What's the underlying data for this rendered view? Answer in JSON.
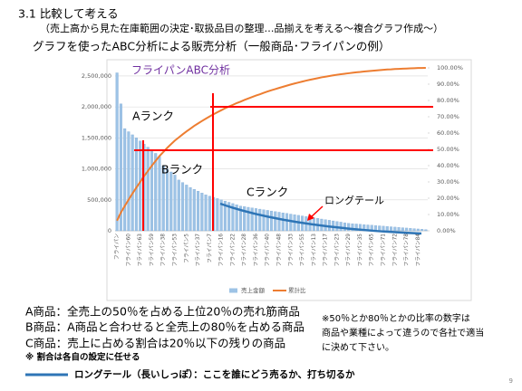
{
  "header": {
    "section": "3.1 比較して考える",
    "subtitle": "（売上高から見た在庫範囲の決定･取扱品目の整理…品揃えを考える～複合グラフ作成～）",
    "heading": "グラフを使ったABC分析による販売分析（一般商品･フライパンの例）"
  },
  "chart_data": {
    "type": "combo",
    "title": "フライパンABC分析",
    "categories": [
      "フライパン",
      null,
      null,
      "フライパン60",
      null,
      null,
      "フライパン63",
      null,
      null,
      "フライパン59",
      null,
      null,
      "フライパン38",
      null,
      null,
      "フライパン53",
      null,
      null,
      "フライパン5",
      null,
      null,
      "フライパン37",
      null,
      null,
      "フライパン7",
      null,
      null,
      "フライパン16",
      null,
      null,
      "フライパン22",
      null,
      null,
      "フライパン28",
      null,
      null,
      "フライパン36",
      null,
      null,
      "フライパン40",
      null,
      null,
      "フライパン48",
      null,
      null,
      "フライパン33",
      null,
      null,
      "フライパン55",
      null,
      null,
      "フライパン13",
      null,
      null,
      "フライパン17",
      null,
      null,
      "フライパン23",
      null,
      null,
      "フライパン29",
      null,
      null,
      "フライパン35",
      null,
      null,
      "フライパン65",
      null,
      null,
      "フライパン71",
      null,
      null,
      "フライパン72",
      null,
      null,
      "フライパン78",
      null,
      null,
      "フライパン84",
      null,
      null
    ],
    "series": [
      {
        "name": "売上金額",
        "type": "bar",
        "color": "#9dc3e6",
        "values": [
          2550000,
          2050000,
          1650000,
          1600000,
          1550000,
          1500000,
          1450000,
          1400000,
          1350000,
          1300000,
          1250000,
          1200000,
          1050000,
          1000000,
          950000,
          900000,
          820000,
          780000,
          740000,
          700000,
          670000,
          640000,
          610000,
          580000,
          560000,
          540000,
          520000,
          500000,
          480000,
          460000,
          440000,
          420000,
          400000,
          390000,
          380000,
          370000,
          360000,
          350000,
          340000,
          330000,
          320000,
          310000,
          300000,
          290000,
          280000,
          270000,
          260000,
          250000,
          240000,
          230000,
          220000,
          210000,
          200000,
          190000,
          180000,
          170000,
          160000,
          150000,
          140000,
          130000,
          120000,
          115000,
          110000,
          105000,
          100000,
          95000,
          90000,
          85000,
          80000,
          75000,
          70000,
          65000,
          60000,
          55000,
          50000,
          45000,
          40000,
          35000,
          30000,
          25000,
          20000
        ]
      },
      {
        "name": "累計比",
        "type": "line",
        "axis": "y2",
        "color": "#ed7d31",
        "values": [
          6.2,
          11.2,
          15.2,
          19.1,
          22.9,
          26.5,
          30.0,
          33.5,
          36.7,
          39.9,
          42.9,
          45.9,
          48.4,
          50.9,
          53.2,
          55.4,
          57.3,
          59.2,
          61.0,
          62.7,
          64.4,
          65.9,
          67.4,
          68.8,
          70.2,
          71.5,
          72.8,
          74.0,
          75.2,
          76.3,
          77.3,
          78.4,
          79.3,
          80.3,
          81.2,
          82.1,
          83.0,
          83.8,
          84.7,
          85.5,
          86.3,
          87.0,
          87.7,
          88.4,
          89.1,
          89.8,
          90.4,
          91.0,
          91.6,
          92.2,
          92.7,
          93.2,
          93.7,
          94.2,
          94.6,
          95.0,
          95.4,
          95.8,
          96.1,
          96.4,
          96.7,
          97.0,
          97.3,
          97.5,
          97.8,
          98.0,
          98.2,
          98.4,
          98.6,
          98.8,
          99.0,
          99.1,
          99.3,
          99.4,
          99.5,
          99.6,
          99.7,
          99.8,
          99.9,
          99.9,
          100
        ]
      }
    ],
    "ylim": [
      0,
      2630000
    ],
    "yticks": [
      0,
      {
        "value": 500000,
        "label": "500,000"
      },
      {
        "value": 1000000,
        "label": "1,000,000"
      },
      {
        "value": 1500000,
        "label": "1,500,000"
      },
      {
        "value": 2000000,
        "label": "2,000,000"
      },
      {
        "value": 2500000,
        "label": "2,500,000"
      }
    ],
    "y2lim": [
      0,
      100
    ],
    "y2ticks": [
      {
        "value": 0,
        "label": "0.00%"
      },
      {
        "value": 10,
        "label": "10.00%"
      },
      {
        "value": 20,
        "label": "20.00%"
      },
      {
        "value": 30,
        "label": "30.00%"
      },
      {
        "value": 40,
        "label": "40.00%"
      },
      {
        "value": 50,
        "label": "50.00%"
      },
      {
        "value": 60,
        "label": "60.00%"
      },
      {
        "value": 70,
        "label": "70.00%"
      },
      {
        "value": 80,
        "label": "80.00%"
      },
      {
        "value": 90,
        "label": "90.00%"
      },
      {
        "value": 100,
        "label": "100.00%"
      }
    ],
    "grid": true,
    "legend": "bottom",
    "annotations": {
      "a": "Aランク",
      "b": "Bランク",
      "c": "Cランク",
      "tail": "ロングテール"
    }
  },
  "notes": {
    "a": "A商品：全売上の50％を占める上位20％の売れ筋商品",
    "b": "B商品：A商品と合わせると全売上の80％を占める商品",
    "c": "C商品：売上に占める割合は20％以下の残りの商品",
    "ratio": "※ 割合は各自の設定に任せる",
    "side": [
      "※50％とか80％とかの比率の数字は",
      "商品や業種によって違うので各社で適当",
      "に決めて下さい。"
    ],
    "tail": "ロングテール（長いしっぽ）：ここを誰にどう売るか、打ち切るか",
    "page": "9"
  }
}
